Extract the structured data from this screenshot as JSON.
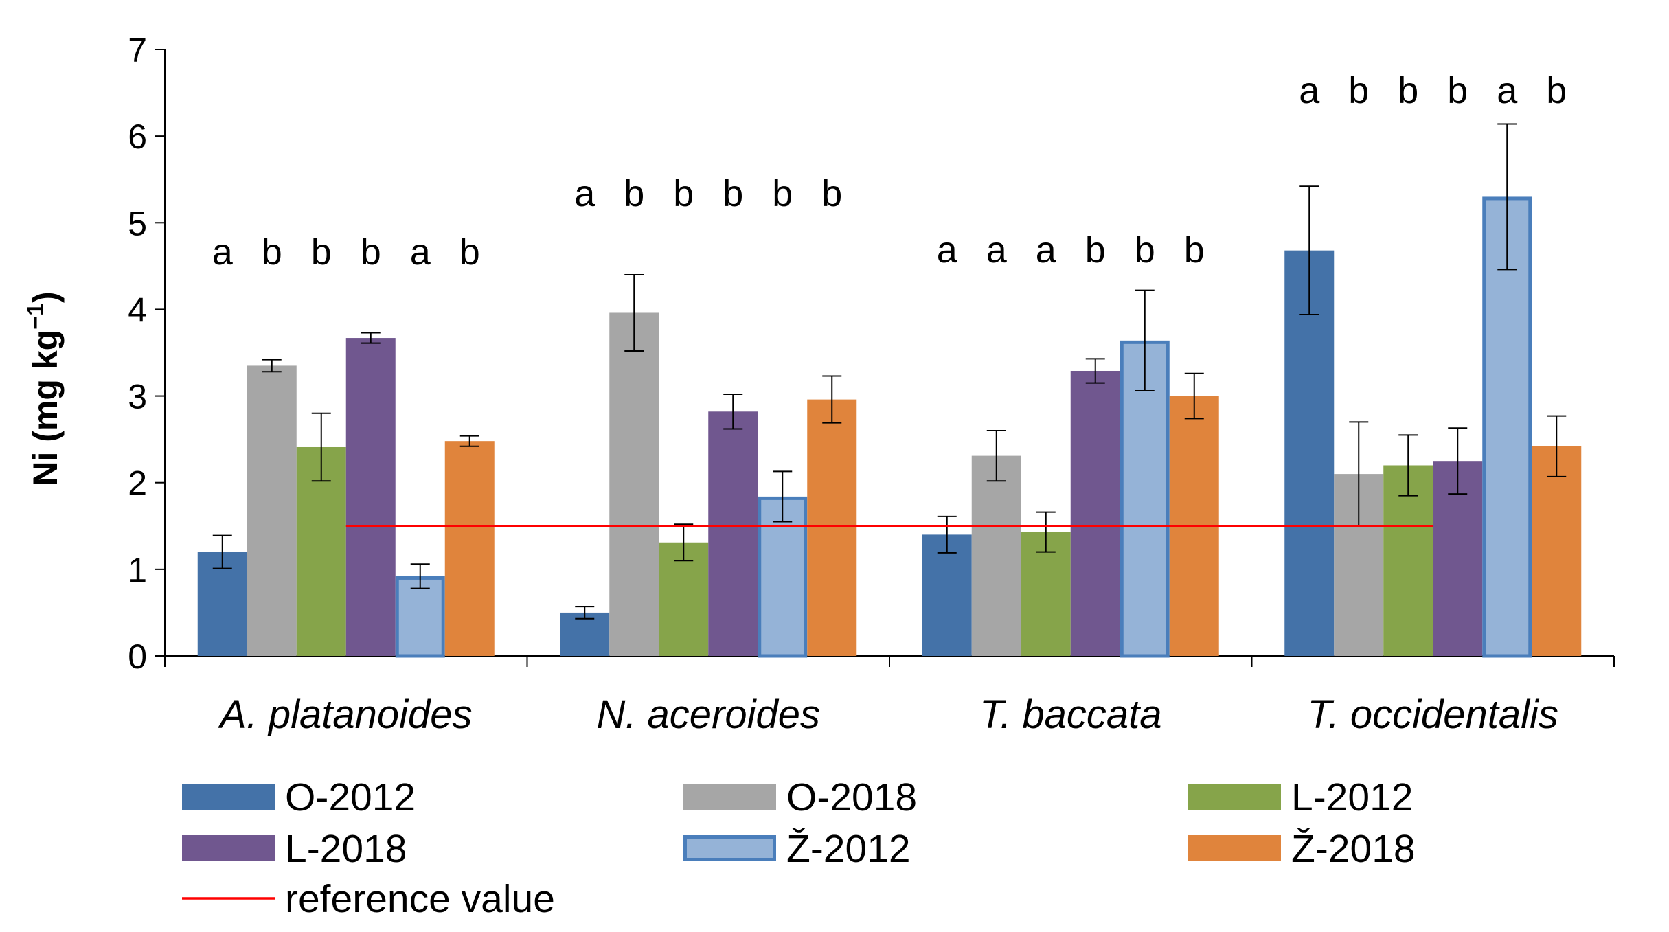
{
  "chart_data": {
    "type": "bar",
    "ylabel": "Ni (mg kg",
    "ylabel_sup": "−1",
    "ylabel_end": ")",
    "ylim": [
      0,
      7
    ],
    "yticks": [
      "0",
      "1",
      "2",
      "3",
      "4",
      "5",
      "6",
      "7"
    ],
    "categories": [
      "A. platanoides",
      "N. aceroides",
      "T. baccata",
      "T. occidentalis"
    ],
    "series": [
      {
        "name": "O-2012",
        "color": "#4472a8",
        "outline": false,
        "values": [
          1.2,
          0.5,
          1.4,
          4.68
        ],
        "errors": [
          0.19,
          0.07,
          0.21,
          0.74
        ]
      },
      {
        "name": "O-2018",
        "color": "#a6a6a6",
        "outline": false,
        "values": [
          3.35,
          3.96,
          2.31,
          2.1
        ],
        "errors": [
          0.07,
          0.44,
          0.29,
          0.6
        ]
      },
      {
        "name": "L-2012",
        "color": "#86a44a",
        "outline": false,
        "values": [
          2.41,
          1.31,
          1.43,
          2.2
        ],
        "errors": [
          0.39,
          0.21,
          0.23,
          0.35
        ]
      },
      {
        "name": "L-2018",
        "color": "#70578f",
        "outline": false,
        "values": [
          3.67,
          2.82,
          3.29,
          2.25
        ],
        "errors": [
          0.06,
          0.2,
          0.14,
          0.38
        ]
      },
      {
        "name": "Ž-2012",
        "color": "#95b3d7",
        "outline": true,
        "outline_color": "#4a7ebb",
        "values": [
          0.92,
          1.84,
          3.64,
          5.3
        ],
        "errors": [
          0.14,
          0.29,
          0.58,
          0.84
        ]
      },
      {
        "name": "Ž-2018",
        "color": "#e0843c",
        "outline": false,
        "values": [
          2.48,
          2.96,
          3.0,
          2.42
        ],
        "errors": [
          0.06,
          0.27,
          0.26,
          0.35
        ]
      }
    ],
    "significance": [
      [
        "a",
        "b",
        "b",
        "b",
        "a",
        "b"
      ],
      [
        "a",
        "b",
        "b",
        "b",
        "b",
        "b"
      ],
      [
        "a",
        "a",
        "a",
        "b",
        "b",
        "b"
      ],
      [
        "a",
        "b",
        "b",
        "b",
        "a",
        "b"
      ]
    ],
    "reference": {
      "label": "reference value",
      "value": 1.5,
      "color": "#ff0000"
    },
    "grid": false,
    "legend_position": "bottom"
  }
}
